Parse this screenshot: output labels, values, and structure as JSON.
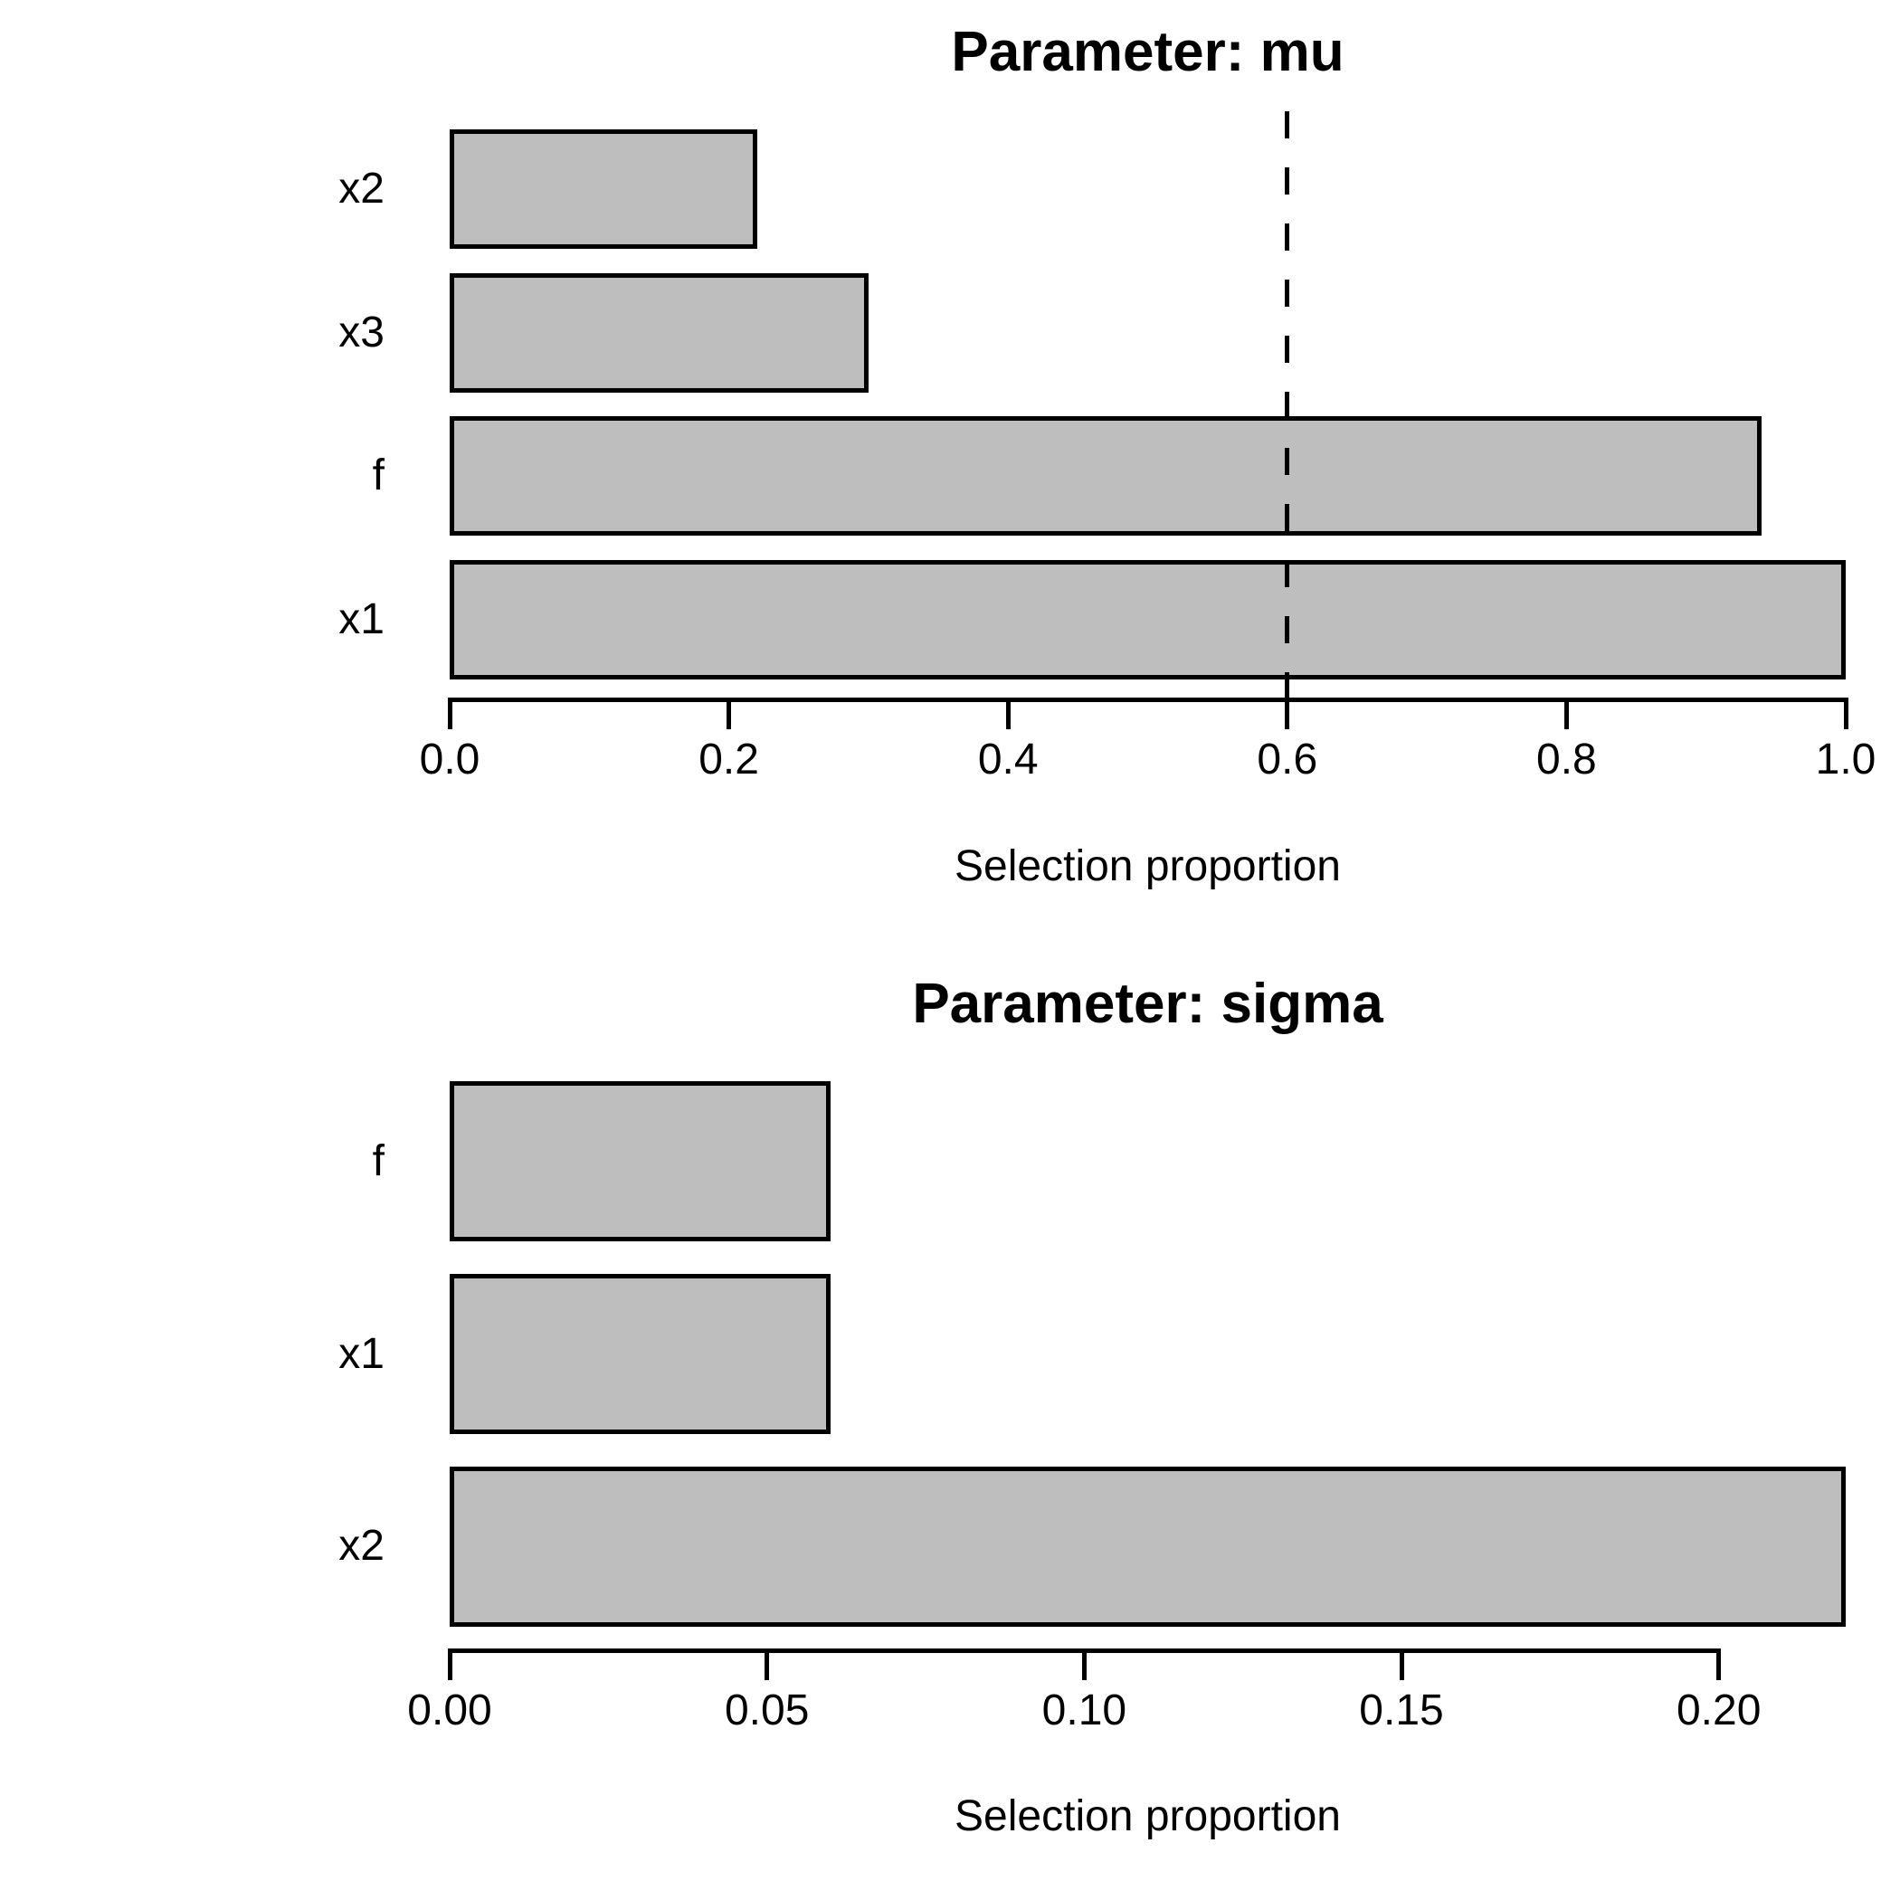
{
  "figure": {
    "background": "#ffffff",
    "bar_fill": "#bebebe",
    "bar_border": "#000000",
    "cutoff_color": "#000000",
    "text_color": "#000000"
  },
  "chart_data": [
    {
      "type": "bar",
      "orientation": "horizontal",
      "title": "Parameter: mu",
      "xlabel": "Selection proportion",
      "categories": [
        "x2",
        "x3",
        "f",
        "x1"
      ],
      "values": [
        0.22,
        0.3,
        0.94,
        1.0
      ],
      "xlim": [
        0,
        1.0
      ],
      "xticks": [
        0.0,
        0.2,
        0.4,
        0.6,
        0.8,
        1.0
      ],
      "xtick_labels": [
        "0.0",
        "0.2",
        "0.4",
        "0.6",
        "0.8",
        "1.0"
      ],
      "axis_end": 1.0,
      "cutoff_line": 0.6,
      "cutoff_style": "dashed",
      "grid": false,
      "legend": false
    },
    {
      "type": "bar",
      "orientation": "horizontal",
      "title": "Parameter: sigma",
      "xlabel": "Selection proportion",
      "categories": [
        "f",
        "x1",
        "x2"
      ],
      "values": [
        0.06,
        0.06,
        0.22
      ],
      "xlim": [
        0,
        0.22
      ],
      "xticks": [
        0.0,
        0.05,
        0.1,
        0.15,
        0.2
      ],
      "xtick_labels": [
        "0.00",
        "0.05",
        "0.10",
        "0.15",
        "0.20"
      ],
      "axis_end": 0.2,
      "cutoff_line": null,
      "cutoff_style": null,
      "grid": false,
      "legend": false
    }
  ]
}
